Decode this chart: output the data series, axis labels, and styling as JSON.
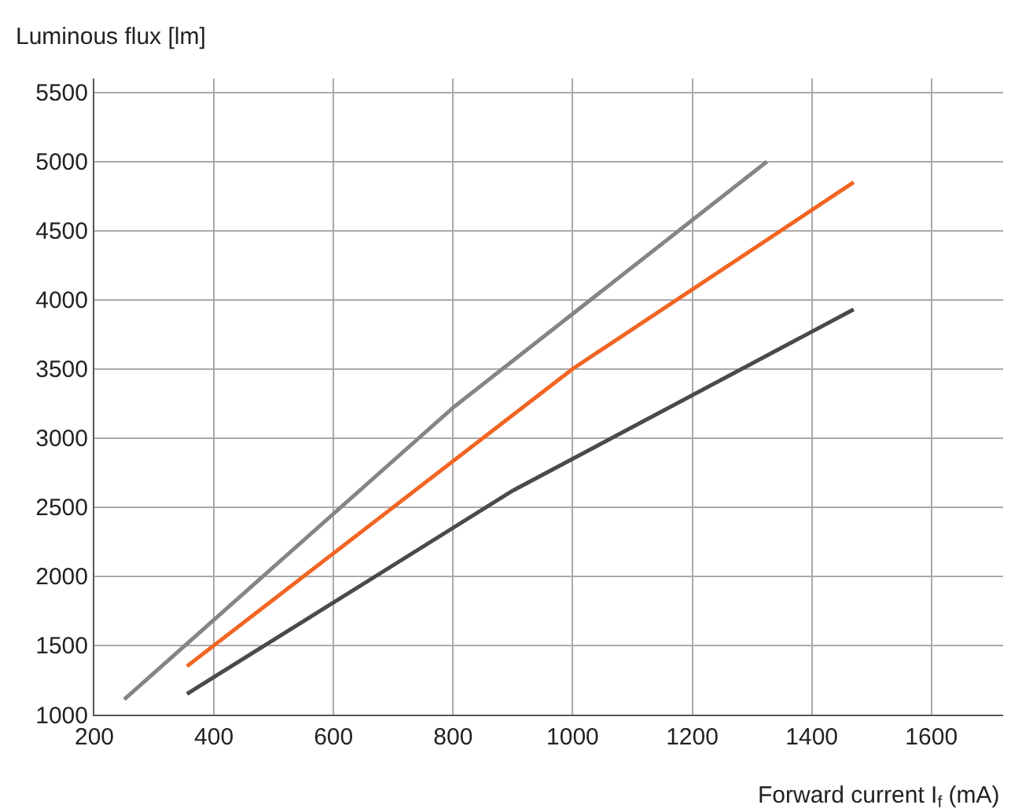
{
  "chart_data": {
    "type": "line",
    "xlabel": "Forward current I$_{f}$ (mA)",
    "ylabel": "Luminous flux [lm]",
    "xlim": [
      200,
      1720
    ],
    "xticks": [
      200,
      400,
      600,
      800,
      1000,
      1200,
      1400,
      1600
    ],
    "ylim": [
      1000,
      5600
    ],
    "yticks": [
      1000,
      1500,
      2000,
      2500,
      3000,
      3500,
      4000,
      4500,
      5000,
      5500
    ],
    "grid": true,
    "marker": "none",
    "line_style": "solid",
    "series": [
      {
        "color": "#858585",
        "x": [
          250,
          800,
          1325
        ],
        "values": [
          1110,
          3220,
          5000
        ]
      },
      {
        "color": "#f26522",
        "x": [
          355,
          1000,
          1470
        ],
        "values": [
          1350,
          3500,
          4850
        ]
      },
      {
        "color": "#4a4a4a",
        "x": [
          355,
          900,
          1470
        ],
        "values": [
          1150,
          2620,
          3930
        ]
      }
    ]
  }
}
